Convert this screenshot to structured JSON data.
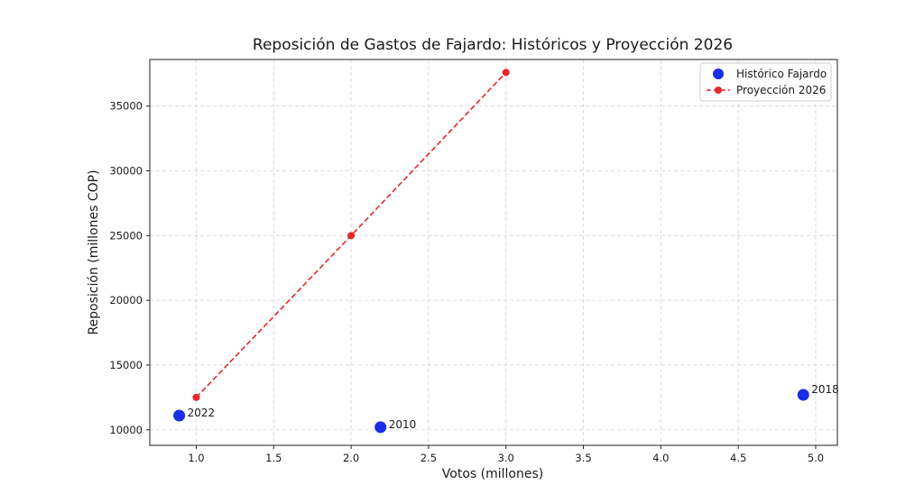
{
  "chart_data": {
    "type": "scatter",
    "title": "Reposición de Gastos de Fajardo: Históricos y Proyección 2026",
    "xlabel": "Votos (millones)",
    "ylabel": "Reposición (millones COP)",
    "xlim": [
      0.7,
      5.14
    ],
    "ylim": [
      8800,
      38600
    ],
    "xticks": [
      1.0,
      1.5,
      2.0,
      2.5,
      3.0,
      3.5,
      4.0,
      4.5,
      5.0
    ],
    "xtick_labels": [
      "1.0",
      "1.5",
      "2.0",
      "2.5",
      "3.0",
      "3.5",
      "4.0",
      "4.5",
      "5.0"
    ],
    "yticks": [
      10000,
      15000,
      20000,
      25000,
      30000,
      35000
    ],
    "ytick_labels": [
      "10000",
      "15000",
      "20000",
      "25000",
      "30000",
      "35000"
    ],
    "grid": true,
    "legend_position": "top-right",
    "series": [
      {
        "name": "Histórico Fajardo",
        "style": "marker",
        "color": "#1a2ee6",
        "points": [
          {
            "x": 0.89,
            "y": 11100,
            "label": "2022"
          },
          {
            "x": 2.19,
            "y": 10200,
            "label": "2010"
          },
          {
            "x": 4.92,
            "y": 12700,
            "label": "2018"
          }
        ]
      },
      {
        "name": "Proyección 2026",
        "style": "dashed-line-marker",
        "color": "#e8262a",
        "points": [
          {
            "x": 1.0,
            "y": 12500
          },
          {
            "x": 2.0,
            "y": 25000
          },
          {
            "x": 3.0,
            "y": 37600
          }
        ]
      }
    ]
  }
}
